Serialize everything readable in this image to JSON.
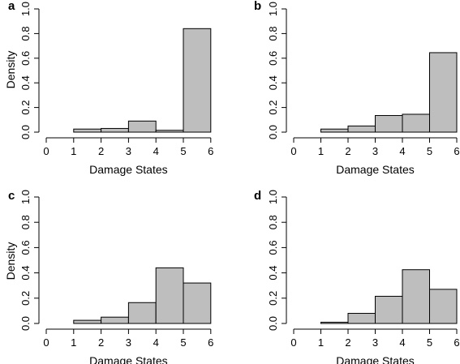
{
  "chart_data": [
    {
      "type": "bar",
      "panel": "a",
      "xlabel": "Damage States",
      "ylabel": "Density",
      "xlim": [
        0,
        6
      ],
      "ylim": [
        0,
        1.0
      ],
      "xticks": [
        "0",
        "1",
        "2",
        "3",
        "4",
        "5",
        "6"
      ],
      "yticks": [
        "0.0",
        "0.2",
        "0.4",
        "0.6",
        "0.8",
        "1.0"
      ],
      "bins": [
        [
          0,
          1
        ],
        [
          1,
          2
        ],
        [
          2,
          3
        ],
        [
          3,
          4
        ],
        [
          4,
          5
        ],
        [
          5,
          6
        ]
      ],
      "values": [
        0.0,
        0.025,
        0.03,
        0.09,
        0.015,
        0.84
      ],
      "grid": false,
      "legend": "none"
    },
    {
      "type": "bar",
      "panel": "b",
      "xlabel": "Damage States",
      "ylabel": "",
      "xlim": [
        0,
        6
      ],
      "ylim": [
        0,
        1.0
      ],
      "xticks": [
        "0",
        "1",
        "2",
        "3",
        "4",
        "5",
        "6"
      ],
      "yticks": [
        "0.0",
        "0.2",
        "0.4",
        "0.6",
        "0.8",
        "1.0"
      ],
      "bins": [
        [
          0,
          1
        ],
        [
          1,
          2
        ],
        [
          2,
          3
        ],
        [
          3,
          4
        ],
        [
          4,
          5
        ],
        [
          5,
          6
        ]
      ],
      "values": [
        0.0,
        0.025,
        0.05,
        0.135,
        0.145,
        0.645
      ],
      "grid": false,
      "legend": "none"
    },
    {
      "type": "bar",
      "panel": "c",
      "xlabel": "Damage States",
      "ylabel": "Density",
      "xlim": [
        0,
        6
      ],
      "ylim": [
        0,
        1.0
      ],
      "xticks": [
        "0",
        "1",
        "2",
        "3",
        "4",
        "5",
        "6"
      ],
      "yticks": [
        "0.0",
        "0.2",
        "0.4",
        "0.6",
        "0.8",
        "1.0"
      ],
      "bins": [
        [
          0,
          1
        ],
        [
          1,
          2
        ],
        [
          2,
          3
        ],
        [
          3,
          4
        ],
        [
          4,
          5
        ],
        [
          5,
          6
        ]
      ],
      "values": [
        0.0,
        0.025,
        0.05,
        0.165,
        0.44,
        0.32
      ],
      "grid": false,
      "legend": "none"
    },
    {
      "type": "bar",
      "panel": "d",
      "xlabel": "Damage States",
      "ylabel": "",
      "xlim": [
        0,
        6
      ],
      "ylim": [
        0,
        1.0
      ],
      "xticks": [
        "0",
        "1",
        "2",
        "3",
        "4",
        "5",
        "6"
      ],
      "yticks": [
        "0.0",
        "0.2",
        "0.4",
        "0.6",
        "0.8",
        "1.0"
      ],
      "bins": [
        [
          0,
          1
        ],
        [
          1,
          2
        ],
        [
          2,
          3
        ],
        [
          3,
          4
        ],
        [
          4,
          5
        ],
        [
          5,
          6
        ]
      ],
      "values": [
        0.0,
        0.01,
        0.08,
        0.215,
        0.425,
        0.27
      ],
      "grid": false,
      "legend": "none"
    }
  ],
  "colors": {
    "bar_fill": "#bebebe",
    "bar_stroke": "#000000",
    "axis": "#000000",
    "background": "#ffffff"
  }
}
